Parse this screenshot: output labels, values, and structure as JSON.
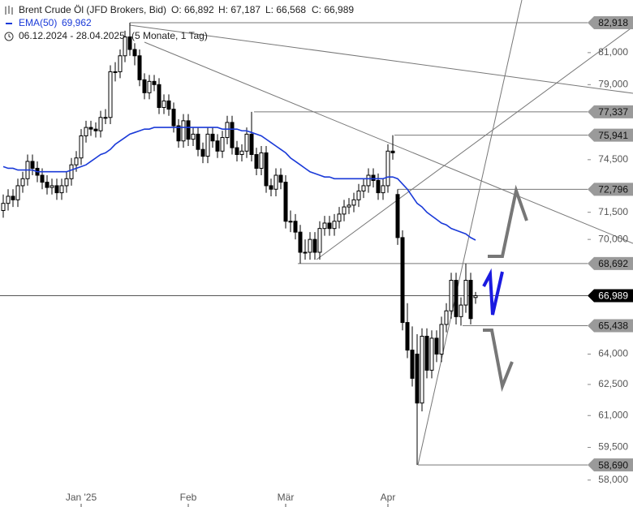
{
  "chart_data": {
    "type": "candlestick",
    "title": "Brent Crude Öl (JFD Brokers, Bid)",
    "ohlc_legend": [
      "O: 66,892",
      "H: 67,187",
      "L: 66,568",
      "C: 66,989"
    ],
    "ema_value_label": "69,962",
    "range": "06.12.2024 - 28.04.2025",
    "period": "(5 Monate, 1 Tag)",
    "log_scale": true,
    "ylim": [
      57.7,
      84.4
    ],
    "yticks": [
      {
        "value": 81,
        "label": "81,000"
      },
      {
        "value": 79,
        "label": "79,000"
      },
      {
        "value": 74.5,
        "label": "74,500"
      },
      {
        "value": 71.5,
        "label": "71,500"
      },
      {
        "value": 70,
        "label": "70,000"
      },
      {
        "value": 64,
        "label": "64,000"
      },
      {
        "value": 62.5,
        "label": "62,500"
      },
      {
        "value": 61,
        "label": "61,000"
      },
      {
        "value": 59.5,
        "label": "59,500"
      },
      {
        "value": 58,
        "label": "58,000"
      }
    ],
    "categories": [
      null,
      null,
      null,
      null,
      null,
      null,
      null,
      null,
      null,
      null,
      null,
      null,
      null,
      null,
      null,
      null,
      "Jan '25",
      null,
      null,
      null,
      null,
      null,
      null,
      null,
      null,
      null,
      null,
      null,
      null,
      null,
      null,
      null,
      null,
      null,
      null,
      null,
      null,
      null,
      "Feb",
      null,
      null,
      null,
      null,
      null,
      null,
      null,
      null,
      null,
      null,
      null,
      null,
      null,
      null,
      null,
      null,
      null,
      null,
      null,
      "Mär",
      null,
      null,
      null,
      null,
      null,
      null,
      null,
      null,
      null,
      null,
      null,
      null,
      null,
      null,
      null,
      null,
      null,
      null,
      null,
      null,
      "Apr",
      null,
      null,
      null,
      null,
      null,
      null,
      null,
      null,
      null,
      null,
      null,
      null,
      null,
      null,
      null,
      null,
      null,
      null
    ],
    "ohlc": [
      [
        71.6,
        72.5,
        71.2,
        72.0
      ],
      [
        72.0,
        72.8,
        71.6,
        72.4
      ],
      [
        72.4,
        72.8,
        71.8,
        72.2
      ],
      [
        72.2,
        73.4,
        71.8,
        73.0
      ],
      [
        73.0,
        73.8,
        72.6,
        73.4
      ],
      [
        73.4,
        74.8,
        73.0,
        74.4
      ],
      [
        74.4,
        74.8,
        73.6,
        74.0
      ],
      [
        74.0,
        74.4,
        73.2,
        73.6
      ],
      [
        73.6,
        74.0,
        72.8,
        73.2
      ],
      [
        73.2,
        73.6,
        72.5,
        72.9
      ],
      [
        72.9,
        73.4,
        72.5,
        73.0
      ],
      [
        73.0,
        73.4,
        72.2,
        72.6
      ],
      [
        72.6,
        73.4,
        72.2,
        73.0
      ],
      [
        73.0,
        73.8,
        72.6,
        73.4
      ],
      [
        73.4,
        74.6,
        73.0,
        74.2
      ],
      [
        74.2,
        75.0,
        73.8,
        74.6
      ],
      [
        74.6,
        76.3,
        74.2,
        75.9
      ],
      [
        75.9,
        76.8,
        75.5,
        76.4
      ],
      [
        76.4,
        76.8,
        75.9,
        76.3
      ],
      [
        76.3,
        76.7,
        75.8,
        76.2
      ],
      [
        76.2,
        77.4,
        75.8,
        77.0
      ],
      [
        77.0,
        77.5,
        76.6,
        77.0
      ],
      [
        77.0,
        80.2,
        76.6,
        79.8
      ],
      [
        79.8,
        80.4,
        79.2,
        79.8
      ],
      [
        79.8,
        81.2,
        79.4,
        80.8
      ],
      [
        80.8,
        82.4,
        80.4,
        82.0
      ],
      [
        82.0,
        82.918,
        80.8,
        81.2
      ],
      [
        81.2,
        81.6,
        80.2,
        80.8
      ],
      [
        80.8,
        81.2,
        78.9,
        79.3
      ],
      [
        79.3,
        79.7,
        78.1,
        78.5
      ],
      [
        78.5,
        79.6,
        78.1,
        79.2
      ],
      [
        79.2,
        79.6,
        78.6,
        79.0
      ],
      [
        79.0,
        79.4,
        77.2,
        77.6
      ],
      [
        77.6,
        78.4,
        77.2,
        78.0
      ],
      [
        78.0,
        78.4,
        77.1,
        77.5
      ],
      [
        77.5,
        77.9,
        76.1,
        76.5
      ],
      [
        76.5,
        76.9,
        75.2,
        75.6
      ],
      [
        75.6,
        77.2,
        75.2,
        76.8
      ],
      [
        76.8,
        77.2,
        75.3,
        75.7
      ],
      [
        75.7,
        76.4,
        75.3,
        76.0
      ],
      [
        76.0,
        76.4,
        74.7,
        75.1
      ],
      [
        75.1,
        75.5,
        74.3,
        74.7
      ],
      [
        74.7,
        76.4,
        74.3,
        76.0
      ],
      [
        76.0,
        76.4,
        75.2,
        75.6
      ],
      [
        75.6,
        76.0,
        74.6,
        75.0
      ],
      [
        75.0,
        76.2,
        74.6,
        75.8
      ],
      [
        75.8,
        77.1,
        75.4,
        76.7
      ],
      [
        76.7,
        77.1,
        74.8,
        75.2
      ],
      [
        75.2,
        75.6,
        74.4,
        74.8
      ],
      [
        74.8,
        75.4,
        74.4,
        75.0
      ],
      [
        75.0,
        76.4,
        74.6,
        76.0
      ],
      [
        76.0,
        77.337,
        74.4,
        74.8
      ],
      [
        74.8,
        75.2,
        73.6,
        74.0
      ],
      [
        74.0,
        75.3,
        73.6,
        74.9
      ],
      [
        74.9,
        75.3,
        72.6,
        73.0
      ],
      [
        73.0,
        73.4,
        72.4,
        72.8
      ],
      [
        72.8,
        74.0,
        72.4,
        73.6
      ],
      [
        73.6,
        74.0,
        72.8,
        73.2
      ],
      [
        73.2,
        73.6,
        70.6,
        71.0
      ],
      [
        71.0,
        71.6,
        70.4,
        71.0
      ],
      [
        71.0,
        71.4,
        70.0,
        70.4
      ],
      [
        70.4,
        70.8,
        68.692,
        69.3
      ],
      [
        69.3,
        70.0,
        68.9,
        69.3
      ],
      [
        69.3,
        70.4,
        68.9,
        70.0
      ],
      [
        70.0,
        70.4,
        68.9,
        69.3
      ],
      [
        69.3,
        71.0,
        68.9,
        70.6
      ],
      [
        70.6,
        71.3,
        70.2,
        70.9
      ],
      [
        70.9,
        71.3,
        70.2,
        70.6
      ],
      [
        70.6,
        71.4,
        70.2,
        71.0
      ],
      [
        71.0,
        71.8,
        70.6,
        71.4
      ],
      [
        71.4,
        72.2,
        71.0,
        71.8
      ],
      [
        71.8,
        72.3,
        71.4,
        71.9
      ],
      [
        71.9,
        72.6,
        71.5,
        72.2
      ],
      [
        72.2,
        73.1,
        71.8,
        72.7
      ],
      [
        72.7,
        73.4,
        72.3,
        73.0
      ],
      [
        73.0,
        74.0,
        72.6,
        73.6
      ],
      [
        73.6,
        74.0,
        72.9,
        73.3
      ],
      [
        73.3,
        73.7,
        72.2,
        72.6
      ],
      [
        72.6,
        73.4,
        72.2,
        73.0
      ],
      [
        73.0,
        75.4,
        72.6,
        75.0
      ],
      [
        75.0,
        75.941,
        74.5,
        74.9
      ],
      [
        72.5,
        72.796,
        69.7,
        70.1
      ],
      [
        70.1,
        70.5,
        65.2,
        65.6
      ],
      [
        65.6,
        66.6,
        63.8,
        64.2
      ],
      [
        64.2,
        65.4,
        62.4,
        62.8
      ],
      [
        64.0,
        65.0,
        58.69,
        61.6
      ],
      [
        61.6,
        65.3,
        61.2,
        64.9
      ],
      [
        64.9,
        65.3,
        62.8,
        63.2
      ],
      [
        63.2,
        65.2,
        62.8,
        64.8
      ],
      [
        64.8,
        65.2,
        63.6,
        64.0
      ],
      [
        64.0,
        65.9,
        63.6,
        65.5
      ],
      [
        65.5,
        66.6,
        65.1,
        66.2
      ],
      [
        66.2,
        68.2,
        65.8,
        67.8
      ],
      [
        67.8,
        68.2,
        65.5,
        65.9
      ],
      [
        65.9,
        66.9,
        65.438,
        66.5
      ],
      [
        66.5,
        68.69,
        66.1,
        67.8
      ],
      [
        67.8,
        68.2,
        65.5,
        65.8
      ],
      [
        66.892,
        67.187,
        66.568,
        66.989
      ]
    ],
    "up_color": "#ffffff",
    "down_color": "#000000",
    "series": [
      {
        "name": "EMA(50)",
        "color": "#1a3ad8",
        "values": [
          74.1,
          74.0,
          74.0,
          73.9,
          73.9,
          73.9,
          73.9,
          73.8,
          73.8,
          73.8,
          73.8,
          73.8,
          73.8,
          73.8,
          73.9,
          74.0,
          74.1,
          74.2,
          74.4,
          74.6,
          74.8,
          74.9,
          75.1,
          75.4,
          75.6,
          75.8,
          76.0,
          76.1,
          76.2,
          76.3,
          76.3,
          76.4,
          76.4,
          76.4,
          76.4,
          76.4,
          76.4,
          76.4,
          76.4,
          76.4,
          76.4,
          76.4,
          76.4,
          76.4,
          76.4,
          76.3,
          76.3,
          76.3,
          76.3,
          76.2,
          76.2,
          76.1,
          76.0,
          75.9,
          75.7,
          75.5,
          75.3,
          75.1,
          74.9,
          74.6,
          74.4,
          74.2,
          74.0,
          73.8,
          73.7,
          73.6,
          73.5,
          73.5,
          73.4,
          73.4,
          73.4,
          73.4,
          73.4,
          73.4,
          73.4,
          73.4,
          73.4,
          73.4,
          73.4,
          73.5,
          73.5,
          73.4,
          73.1,
          72.8,
          72.4,
          72.0,
          71.8,
          71.5,
          71.3,
          71.1,
          70.9,
          70.8,
          70.6,
          70.5,
          70.4,
          70.3,
          70.1,
          69.962
        ]
      }
    ],
    "levels": [
      {
        "value": 82.918,
        "label": "82,918",
        "color": "#9a9a9a"
      },
      {
        "value": 77.337,
        "label": "77,337",
        "color": "#9a9a9a"
      },
      {
        "value": 75.941,
        "label": "75,941",
        "color": "#9a9a9a"
      },
      {
        "value": 72.796,
        "label": "72,796",
        "color": "#9a9a9a"
      },
      {
        "value": 68.692,
        "label": "68,692",
        "color": "#9a9a9a"
      },
      {
        "value": 66.989,
        "label": "66,989",
        "color": "#000000"
      },
      {
        "value": 65.438,
        "label": "65,438",
        "color": "#9a9a9a"
      },
      {
        "value": 58.69,
        "label": "58,690",
        "color": "#9a9a9a"
      }
    ]
  }
}
